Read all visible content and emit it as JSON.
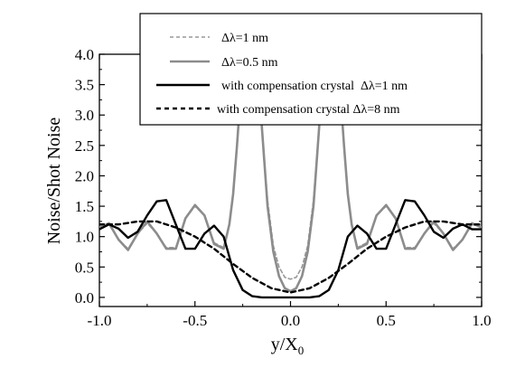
{
  "chart_data": {
    "type": "line",
    "title": "",
    "xlabel": "y/X",
    "xlabel_subscript": "0",
    "ylabel": "Noise/Shot Noise",
    "xlim": [
      -1.0,
      1.0
    ],
    "ylim": [
      -0.15,
      4.0
    ],
    "x_ticks": [
      -1.0,
      -0.5,
      0.0,
      0.5,
      1.0
    ],
    "x_tick_labels": [
      "-1.0",
      "-0.5",
      "0.0",
      "0.5",
      "1.0"
    ],
    "y_ticks": [
      0.0,
      0.5,
      1.0,
      1.5,
      2.0,
      2.5,
      3.0,
      3.5,
      4.0
    ],
    "y_tick_labels": [
      "0.0",
      "0.5",
      "1.0",
      "1.5",
      "2.0",
      "2.5",
      "3.0",
      "3.5",
      "4.0"
    ],
    "grid": false,
    "legend_position": "top-right",
    "series": [
      {
        "name": "Δλ=1 nm",
        "color": "#999999",
        "style": "dashed",
        "x": [
          -1.0,
          -0.95,
          -0.9,
          -0.85,
          -0.8,
          -0.75,
          -0.7,
          -0.65,
          -0.6,
          -0.55,
          -0.5,
          -0.45,
          -0.4,
          -0.35,
          -0.32,
          -0.3,
          -0.28,
          -0.26,
          -0.24,
          -0.22,
          -0.2,
          -0.18,
          -0.15,
          -0.12,
          -0.09,
          -0.06,
          -0.03,
          0.0,
          0.03,
          0.06,
          0.09,
          0.12,
          0.15,
          0.18,
          0.2,
          0.22,
          0.24,
          0.26,
          0.28,
          0.3,
          0.32,
          0.35,
          0.4,
          0.45,
          0.5,
          0.55,
          0.6,
          0.65,
          0.7,
          0.75,
          0.8,
          0.85,
          0.9,
          0.95,
          1.0
        ],
        "y": [
          1.15,
          1.2,
          0.95,
          0.8,
          1.05,
          1.22,
          1.05,
          0.82,
          0.82,
          1.3,
          1.5,
          1.35,
          0.9,
          0.82,
          1.2,
          1.7,
          2.5,
          3.4,
          4.0,
          4.5,
          4.5,
          4.0,
          2.8,
          1.6,
          0.85,
          0.5,
          0.33,
          0.3,
          0.33,
          0.5,
          0.85,
          1.6,
          2.8,
          4.0,
          4.5,
          4.5,
          4.0,
          3.4,
          2.5,
          1.7,
          1.2,
          0.82,
          0.9,
          1.35,
          1.5,
          1.3,
          0.82,
          0.82,
          1.05,
          1.22,
          1.05,
          0.8,
          0.95,
          1.2,
          1.15
        ]
      },
      {
        "name": "Δλ=0.5 nm",
        "color": "#8c8c8c",
        "style": "solid",
        "x": [
          -1.0,
          -0.95,
          -0.9,
          -0.85,
          -0.8,
          -0.75,
          -0.7,
          -0.65,
          -0.6,
          -0.55,
          -0.5,
          -0.45,
          -0.4,
          -0.35,
          -0.32,
          -0.3,
          -0.28,
          -0.26,
          -0.24,
          -0.22,
          -0.2,
          -0.18,
          -0.15,
          -0.12,
          -0.09,
          -0.06,
          -0.03,
          0.0,
          0.03,
          0.06,
          0.09,
          0.12,
          0.15,
          0.18,
          0.2,
          0.22,
          0.24,
          0.26,
          0.28,
          0.3,
          0.32,
          0.35,
          0.4,
          0.45,
          0.5,
          0.55,
          0.6,
          0.65,
          0.7,
          0.75,
          0.8,
          0.85,
          0.9,
          0.95,
          1.0
        ],
        "y": [
          1.15,
          1.22,
          0.95,
          0.78,
          1.05,
          1.25,
          1.05,
          0.8,
          0.8,
          1.3,
          1.52,
          1.35,
          0.88,
          0.8,
          1.2,
          1.7,
          2.5,
          3.4,
          4.0,
          4.5,
          4.5,
          4.0,
          2.8,
          1.5,
          0.75,
          0.35,
          0.15,
          0.1,
          0.15,
          0.35,
          0.75,
          1.5,
          2.8,
          4.0,
          4.5,
          4.5,
          4.0,
          3.4,
          2.5,
          1.7,
          1.2,
          0.8,
          0.88,
          1.35,
          1.52,
          1.3,
          0.8,
          0.8,
          1.05,
          1.25,
          1.05,
          0.78,
          0.95,
          1.22,
          1.15
        ]
      },
      {
        "name": "with compensation crystal  Δλ=1 nm",
        "color": "#000000",
        "style": "solid",
        "x": [
          -1.0,
          -0.95,
          -0.9,
          -0.85,
          -0.8,
          -0.75,
          -0.7,
          -0.65,
          -0.6,
          -0.55,
          -0.5,
          -0.45,
          -0.4,
          -0.35,
          -0.3,
          -0.25,
          -0.2,
          -0.15,
          -0.1,
          -0.05,
          0.0,
          0.05,
          0.1,
          0.15,
          0.2,
          0.25,
          0.3,
          0.35,
          0.4,
          0.45,
          0.5,
          0.55,
          0.6,
          0.65,
          0.7,
          0.75,
          0.8,
          0.85,
          0.9,
          0.95,
          1.0
        ],
        "y": [
          1.12,
          1.2,
          1.13,
          0.98,
          1.08,
          1.35,
          1.58,
          1.6,
          1.2,
          0.8,
          0.8,
          1.05,
          1.18,
          1.0,
          0.45,
          0.12,
          0.02,
          0.0,
          0.0,
          0.0,
          0.0,
          0.0,
          0.0,
          0.02,
          0.12,
          0.45,
          1.0,
          1.18,
          1.05,
          0.8,
          0.8,
          1.2,
          1.6,
          1.58,
          1.35,
          1.08,
          0.98,
          1.13,
          1.2,
          1.12,
          1.12
        ]
      },
      {
        "name": "with compensation crystal Δλ=8 nm",
        "color": "#000000",
        "style": "dashed",
        "x": [
          -1.0,
          -0.9,
          -0.8,
          -0.7,
          -0.6,
          -0.5,
          -0.4,
          -0.3,
          -0.2,
          -0.1,
          0.0,
          0.1,
          0.2,
          0.3,
          0.4,
          0.5,
          0.6,
          0.7,
          0.8,
          0.9,
          1.0
        ],
        "y": [
          1.2,
          1.2,
          1.25,
          1.25,
          1.15,
          1.0,
          0.8,
          0.55,
          0.32,
          0.15,
          0.08,
          0.15,
          0.32,
          0.55,
          0.8,
          1.0,
          1.15,
          1.25,
          1.25,
          1.2,
          1.2
        ]
      }
    ]
  }
}
